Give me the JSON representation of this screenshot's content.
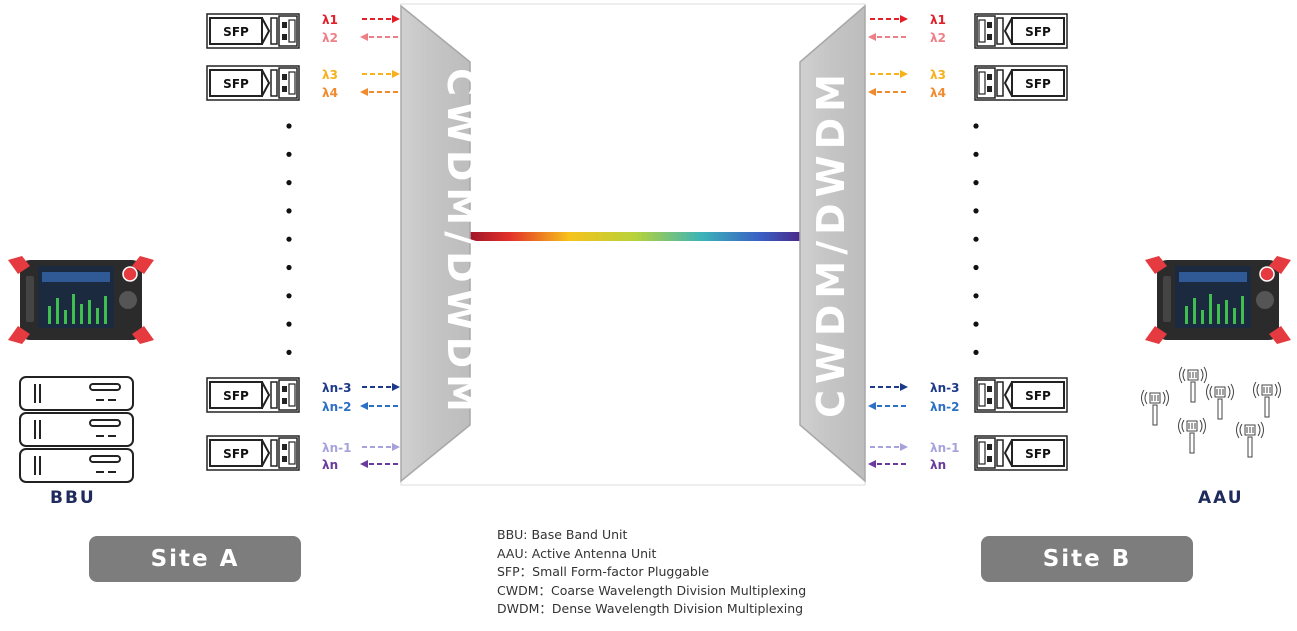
{
  "site_a": {
    "label": "Site A",
    "unit": "BBU"
  },
  "site_b": {
    "label": "Site B",
    "unit": "AAU"
  },
  "mux_left_label": "CWDM/DWDM",
  "mux_right_label": "CWDM/DWDM",
  "sfp_label": "SFP",
  "wavelengths": [
    {
      "label": "λ1",
      "color": "#e3202a"
    },
    {
      "label": "λ2",
      "color": "#ee7f86"
    },
    {
      "label": "λ3",
      "color": "#f6b21c"
    },
    {
      "label": "λ4",
      "color": "#f08a2c"
    },
    {
      "label": "λn-3",
      "color": "#1d3a8a"
    },
    {
      "label": "λn-2",
      "color": "#2d6fc4"
    },
    {
      "label": "λn-1",
      "color": "#a6a3dc"
    },
    {
      "label": "λn",
      "color": "#6a3a9c"
    }
  ],
  "legend": [
    "BBU: Base Band Unit",
    "AAU: Active Antenna Unit",
    "SFP：Small Form-factor Pluggable",
    "CWDM：Coarse Wavelength Division Multiplexing",
    "DWDM：Dense Wavelength Division Multiplexing"
  ],
  "colors": {
    "site_box": "#7d7d7d",
    "unit_label": "#1e2b5c",
    "device_red": "#e53a3f"
  }
}
